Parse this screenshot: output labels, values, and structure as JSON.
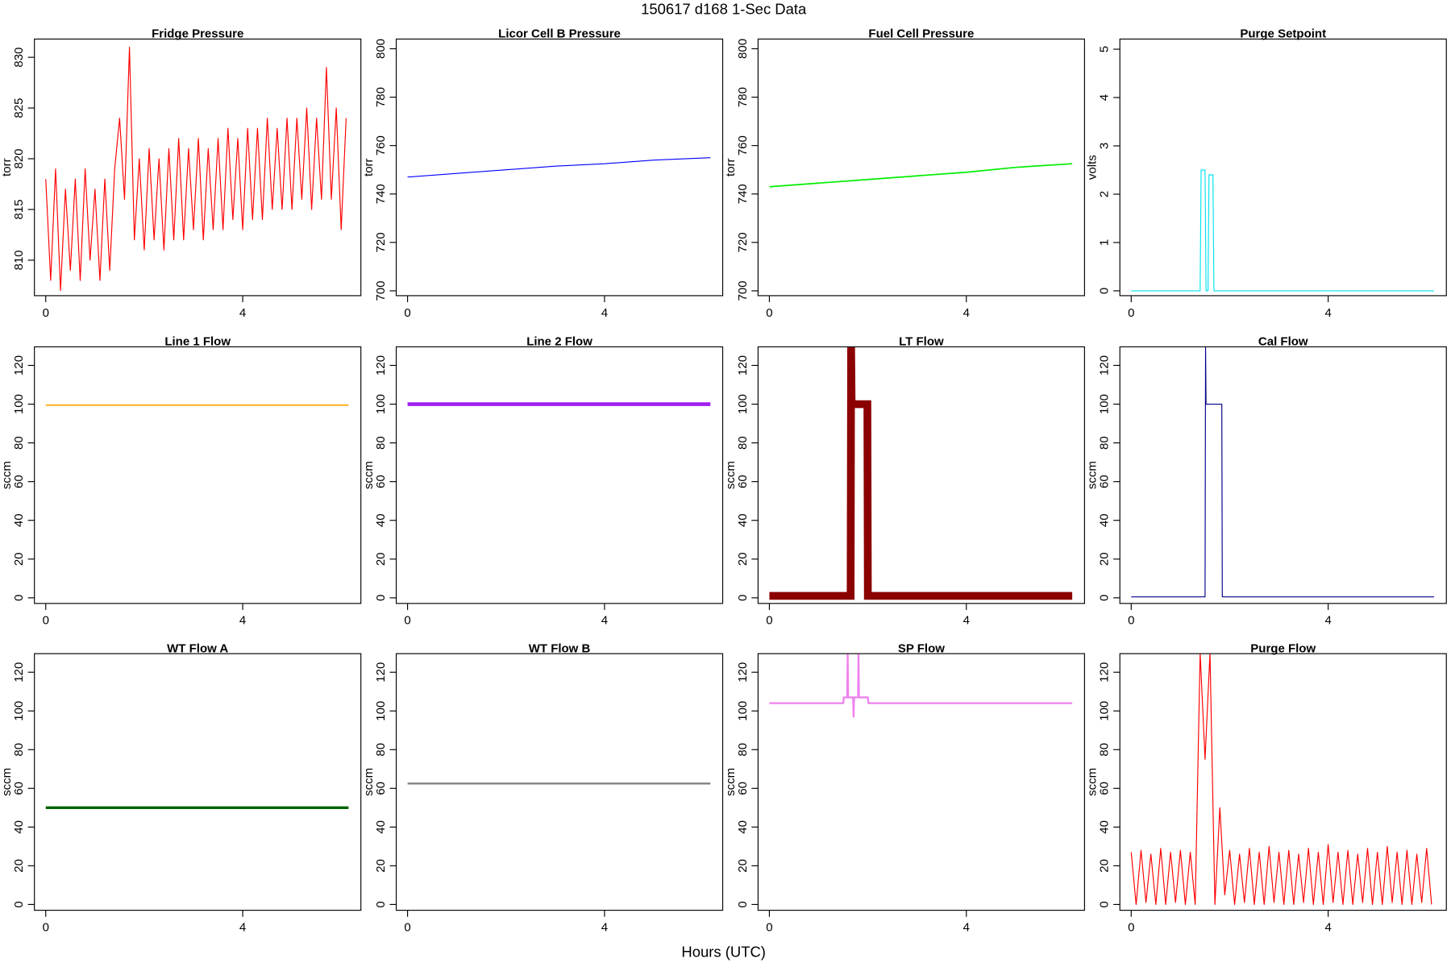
{
  "title": "150617   d168   1-Sec Data",
  "x_label": "Hours (UTC)",
  "chart_data": [
    {
      "type": "line",
      "title": "Fridge Pressure",
      "y_label": "torr",
      "color": "#ff0000",
      "line_width": 1,
      "xlim": [
        -0.23,
        6.4
      ],
      "xticks": [
        0,
        4
      ],
      "ylim": [
        806.5,
        831.8
      ],
      "yticks": [
        810,
        815,
        820,
        825,
        830
      ],
      "x": [
        0,
        0.1,
        0.2,
        0.3,
        0.4,
        0.5,
        0.6,
        0.7,
        0.8,
        0.9,
        1,
        1.1,
        1.2,
        1.3,
        1.4,
        1.5,
        1.6,
        1.7,
        1.8,
        1.9,
        2,
        2.1,
        2.2,
        2.3,
        2.4,
        2.5,
        2.6,
        2.7,
        2.8,
        2.9,
        3,
        3.1,
        3.2,
        3.3,
        3.4,
        3.5,
        3.6,
        3.7,
        3.8,
        3.9,
        4,
        4.1,
        4.2,
        4.3,
        4.4,
        4.5,
        4.6,
        4.7,
        4.8,
        4.9,
        5,
        5.1,
        5.2,
        5.3,
        5.4,
        5.5,
        5.6,
        5.7,
        5.8,
        5.9,
        6,
        6.1
      ],
      "values": [
        818,
        808,
        819,
        807,
        817,
        809,
        818,
        808,
        819,
        810,
        817,
        808,
        818,
        809,
        819,
        824,
        816,
        831,
        812,
        820,
        811,
        821,
        812,
        820,
        811,
        821,
        812,
        822,
        812,
        821,
        813,
        822,
        812,
        821,
        813,
        822,
        813,
        823,
        814,
        822,
        813,
        823,
        814,
        823,
        814,
        824,
        815,
        823,
        815,
        824,
        815,
        824,
        816,
        825,
        815,
        824,
        816,
        829,
        816,
        825,
        813,
        824
      ]
    },
    {
      "type": "line",
      "title": "Licor Cell B Pressure",
      "y_label": "torr",
      "color": "#0000ff",
      "line_width": 1,
      "xlim": [
        -0.23,
        6.4
      ],
      "xticks": [
        0,
        4
      ],
      "ylim": [
        698,
        804
      ],
      "yticks": [
        700,
        720,
        740,
        760,
        780,
        800
      ],
      "x": [
        0,
        1,
        2,
        3,
        4,
        5,
        6.15
      ],
      "values": [
        747,
        748.5,
        750,
        751.5,
        752.5,
        754,
        755
      ]
    },
    {
      "type": "line",
      "title": "Fuel Cell Pressure",
      "y_label": "torr",
      "color": "#00ee00",
      "line_width": 1.5,
      "xlim": [
        -0.23,
        6.4
      ],
      "xticks": [
        0,
        4
      ],
      "ylim": [
        698,
        804
      ],
      "yticks": [
        700,
        720,
        740,
        760,
        780,
        800
      ],
      "x": [
        0,
        1,
        2,
        3,
        4,
        5,
        6.15
      ],
      "values": [
        743,
        744.5,
        746,
        747.5,
        749,
        751,
        752.5
      ]
    },
    {
      "type": "line",
      "title": "Purge Setpoint",
      "y_label": "volts",
      "color": "#00e5ee",
      "line_width": 1,
      "xlim": [
        -0.23,
        6.4
      ],
      "xticks": [
        0,
        4
      ],
      "ylim": [
        -0.1,
        5.21
      ],
      "yticks": [
        0,
        1,
        2,
        3,
        4,
        5
      ],
      "x": [
        0,
        1.4,
        1.42,
        1.5,
        1.52,
        1.56,
        1.58,
        1.66,
        1.68,
        6.15
      ],
      "values": [
        0,
        0,
        2.5,
        2.5,
        0,
        0,
        2.4,
        2.4,
        0,
        0
      ]
    },
    {
      "type": "line",
      "title": "Line 1 Flow",
      "y_label": "sccm",
      "color": "#ffa500",
      "line_width": 1.5,
      "xlim": [
        -0.23,
        6.4
      ],
      "xticks": [
        0,
        4
      ],
      "ylim": [
        -2.9,
        129.6
      ],
      "yticks": [
        0,
        20,
        40,
        60,
        80,
        100,
        120
      ],
      "x": [
        0,
        6.15
      ],
      "values": [
        99.5,
        99.5
      ]
    },
    {
      "type": "line",
      "title": "Line 2 Flow",
      "y_label": "sccm",
      "color": "#a020f0",
      "line_width": 4,
      "xlim": [
        -0.23,
        6.4
      ],
      "xticks": [
        0,
        4
      ],
      "ylim": [
        -2.9,
        129.6
      ],
      "yticks": [
        0,
        20,
        40,
        60,
        80,
        100,
        120
      ],
      "x": [
        0,
        6.15
      ],
      "values": [
        100,
        100
      ]
    },
    {
      "type": "line",
      "title": "LT Flow",
      "y_label": "sccm",
      "color": "#8b0000",
      "line_width": 1,
      "xlim": [
        -0.23,
        6.4
      ],
      "xticks": [
        0,
        4
      ],
      "ylim": [
        -2.9,
        129.6
      ],
      "yticks": [
        0,
        20,
        40,
        60,
        80,
        100,
        120
      ],
      "x": [
        0,
        1.65,
        1.66,
        1.67,
        1.68,
        1.99,
        2.0,
        6.15
      ],
      "values": [
        1,
        1,
        130,
        100,
        100,
        100,
        1,
        1
      ],
      "band_width": 4
    },
    {
      "type": "line",
      "title": "Cal Flow",
      "y_label": "sccm",
      "color": "#00008b",
      "line_width": 1,
      "xlim": [
        -0.23,
        6.4
      ],
      "xticks": [
        0,
        4
      ],
      "ylim": [
        -2.9,
        129.6
      ],
      "yticks": [
        0,
        20,
        40,
        60,
        80,
        100,
        120
      ],
      "x": [
        0,
        1.5,
        1.51,
        1.52,
        1.84,
        1.85,
        6.15
      ],
      "values": [
        0.5,
        0.5,
        130,
        100,
        100,
        0.5,
        0.5
      ]
    },
    {
      "type": "line",
      "title": "WT Flow A",
      "y_label": "sccm",
      "color": "#006400",
      "line_width": 3,
      "xlim": [
        -0.23,
        6.4
      ],
      "xticks": [
        0,
        4
      ],
      "ylim": [
        -3,
        129.6
      ],
      "yticks": [
        0,
        20,
        40,
        60,
        80,
        100,
        120
      ],
      "x": [
        0,
        6.15
      ],
      "values": [
        50,
        50
      ]
    },
    {
      "type": "line",
      "title": "WT Flow B",
      "y_label": "sccm",
      "color": "#808080",
      "line_width": 2,
      "xlim": [
        -0.23,
        6.4
      ],
      "xticks": [
        0,
        4
      ],
      "ylim": [
        -3,
        129.6
      ],
      "yticks": [
        0,
        20,
        40,
        60,
        80,
        100,
        120
      ],
      "x": [
        0,
        6.15
      ],
      "values": [
        62.5,
        62.5
      ]
    },
    {
      "type": "line",
      "title": "SP Flow",
      "y_label": "sccm",
      "color": "#ee82ee",
      "line_width": 2,
      "xlim": [
        -0.23,
        6.4
      ],
      "xticks": [
        0,
        4
      ],
      "ylim": [
        -3,
        129.6
      ],
      "yticks": [
        0,
        20,
        40,
        60,
        80,
        100,
        120
      ],
      "x": [
        0,
        1.5,
        1.51,
        1.58,
        1.59,
        1.6,
        1.7,
        1.71,
        1.72,
        1.8,
        1.81,
        1.82,
        2.0,
        2.01,
        6.15
      ],
      "values": [
        104,
        104,
        107,
        107,
        130,
        107,
        107,
        97,
        107,
        107,
        130,
        107,
        107,
        104,
        104
      ]
    },
    {
      "type": "line",
      "title": "Purge Flow",
      "y_label": "sccm",
      "color": "#ff0000",
      "line_width": 1,
      "xlim": [
        -0.23,
        6.4
      ],
      "xticks": [
        0,
        4
      ],
      "ylim": [
        -3,
        129.6
      ],
      "yticks": [
        0,
        20,
        40,
        60,
        80,
        100,
        120
      ],
      "x": [
        0,
        0.1,
        0.2,
        0.3,
        0.4,
        0.5,
        0.6,
        0.7,
        0.8,
        0.9,
        1,
        1.1,
        1.2,
        1.3,
        1.4,
        1.5,
        1.6,
        1.7,
        1.8,
        1.9,
        2,
        2.1,
        2.2,
        2.3,
        2.4,
        2.5,
        2.6,
        2.7,
        2.8,
        2.9,
        3,
        3.1,
        3.2,
        3.3,
        3.4,
        3.5,
        3.6,
        3.7,
        3.8,
        3.9,
        4,
        4.1,
        4.2,
        4.3,
        4.4,
        4.5,
        4.6,
        4.7,
        4.8,
        4.9,
        5,
        5.1,
        5.2,
        5.3,
        5.4,
        5.5,
        5.6,
        5.7,
        5.8,
        5.9,
        6,
        6.1
      ],
      "values": [
        27,
        0,
        28,
        1,
        26,
        0,
        29,
        0,
        27,
        1,
        28,
        0,
        27,
        0,
        130,
        75,
        130,
        0,
        50,
        5,
        28,
        0,
        26,
        1,
        29,
        0,
        27,
        0,
        30,
        1,
        27,
        0,
        28,
        0,
        26,
        1,
        29,
        0,
        27,
        0,
        31,
        1,
        27,
        0,
        28,
        0,
        26,
        1,
        29,
        0,
        27,
        0,
        30,
        1,
        27,
        0,
        28,
        0,
        26,
        1,
        29,
        0
      ]
    }
  ]
}
